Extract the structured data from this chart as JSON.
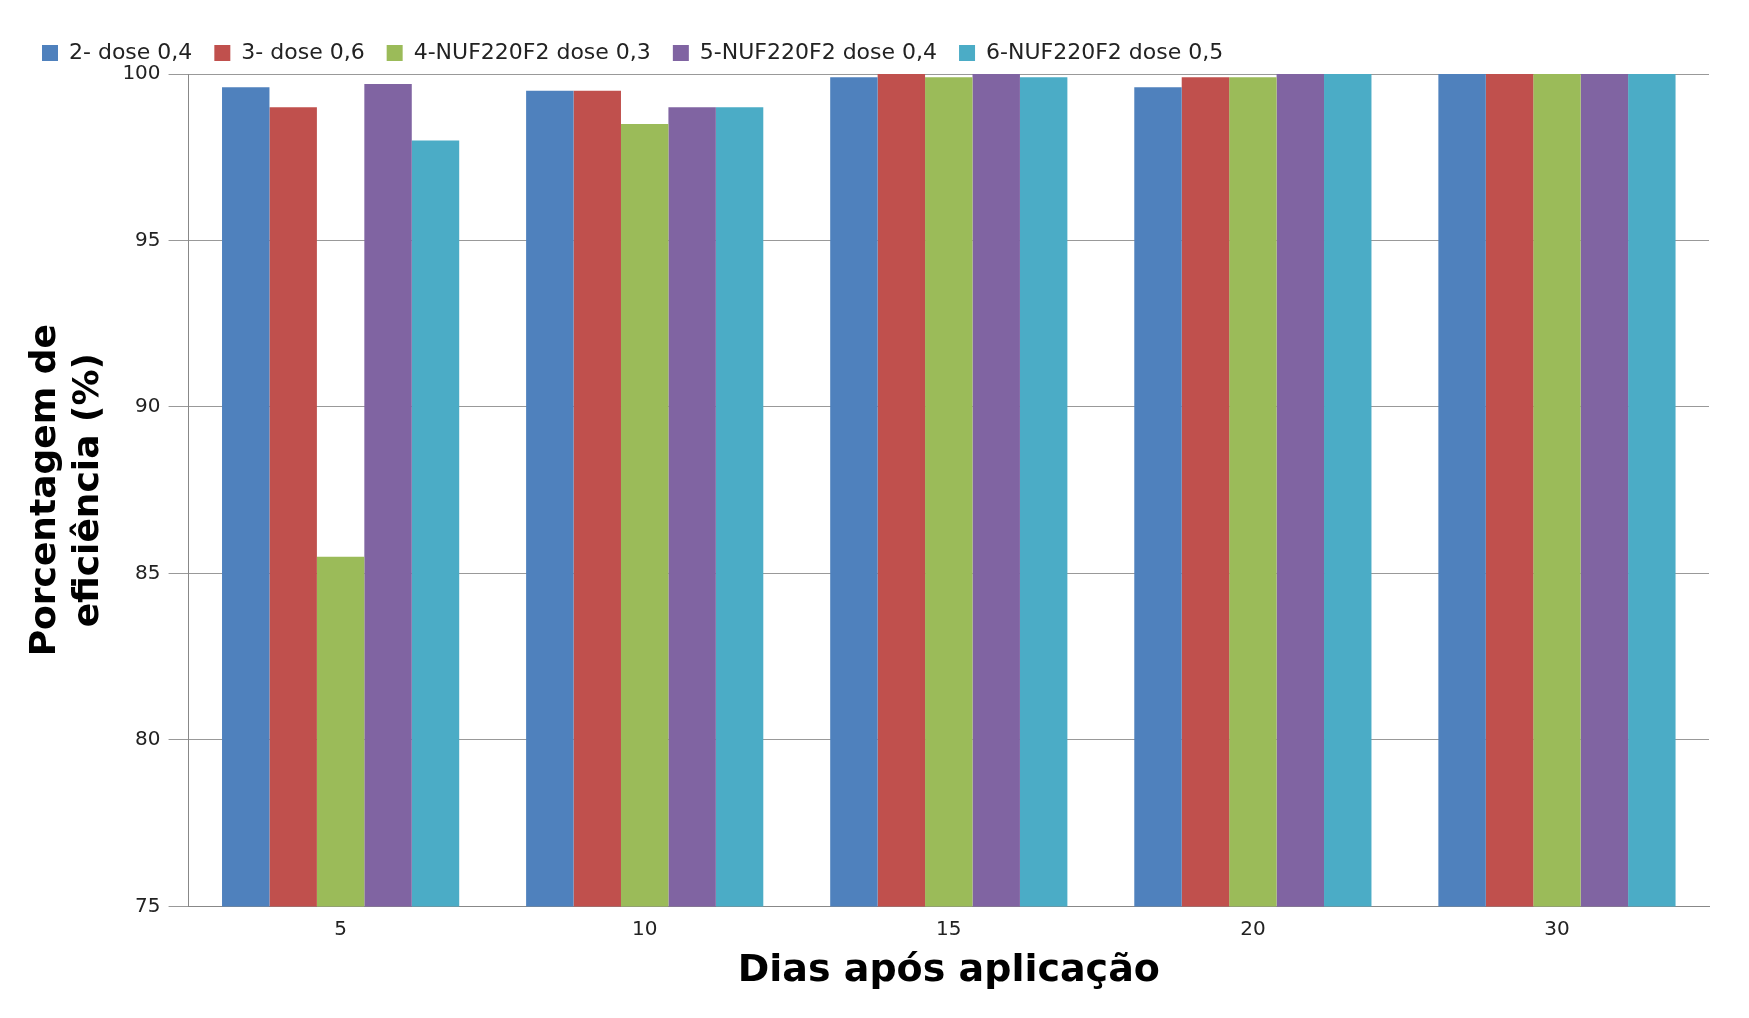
{
  "chart_data": {
    "type": "bar",
    "xlabel": "Dias após aplicação",
    "ylabel": "Porcentagem de eficiência (%)",
    "categories": [
      "5",
      "10",
      "15",
      "20",
      "30"
    ],
    "series": [
      {
        "name": "2- dose 0,4",
        "color": "#4f81bd",
        "values": [
          99.6,
          99.5,
          99.9,
          99.6,
          100
        ]
      },
      {
        "name": "3- dose 0,6",
        "color": "#c0504d",
        "values": [
          99.0,
          99.5,
          100,
          99.9,
          100
        ]
      },
      {
        "name": "4-NUF220F2 dose 0,3",
        "color": "#9bbb59",
        "values": [
          85.5,
          98.5,
          99.9,
          99.9,
          100
        ]
      },
      {
        "name": "5-NUF220F2 dose 0,4",
        "color": "#8064a2",
        "values": [
          99.7,
          99.0,
          100,
          100,
          100
        ]
      },
      {
        "name": "6-NUF220F2 dose 0,5",
        "color": "#4bacc6",
        "values": [
          98.0,
          99.0,
          99.9,
          100,
          100
        ]
      }
    ],
    "ylim": [
      75,
      100
    ],
    "yticks": [
      75,
      80,
      85,
      90,
      95,
      100
    ],
    "grid": "y",
    "legend": "top left"
  }
}
